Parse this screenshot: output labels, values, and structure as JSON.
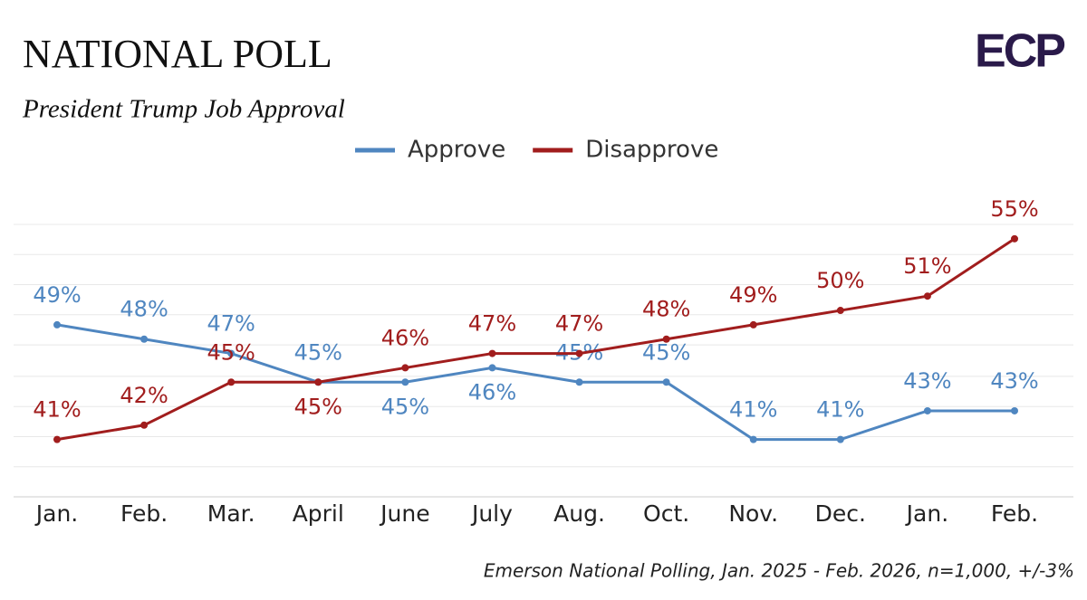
{
  "chart_data": {
    "type": "line",
    "title": "NATIONAL POLL",
    "subtitle": "President Trump Job Approval",
    "logo": "ECP",
    "source": "Emerson National Polling, Jan. 2025 - Feb. 2026, n=1,000, +/-3%",
    "categories": [
      "Jan.",
      "Feb.",
      "Mar.",
      "April",
      "June",
      "July",
      "Aug.",
      "Oct.",
      "Nov.",
      "Dec.",
      "Jan.",
      "Feb."
    ],
    "series": [
      {
        "name": "Approve",
        "color": "#4f86c0",
        "values": [
          49,
          48,
          47,
          45,
          45,
          46,
          45,
          45,
          41,
          41,
          43,
          43
        ],
        "value_labels": [
          "49%",
          "48%",
          "47%",
          "45%",
          "45%",
          "46%",
          "45%",
          "45%",
          "41%",
          "41%",
          "43%",
          "43%"
        ]
      },
      {
        "name": "Disapprove",
        "color": "#a11d1d",
        "values": [
          41,
          42,
          45,
          45,
          46,
          47,
          47,
          48,
          49,
          50,
          51,
          55
        ],
        "value_labels": [
          "41%",
          "42%",
          "45%",
          "45%",
          "46%",
          "47%",
          "47%",
          "48%",
          "49%",
          "50%",
          "51%",
          "55%"
        ]
      }
    ],
    "ylim": [
      37,
      56
    ],
    "yticks": [
      37,
      39.1,
      41.2,
      43.3,
      45.4,
      47.6,
      49.7,
      51.8,
      53.9,
      56
    ],
    "ytick_labels": false,
    "grid": true,
    "legend": "top"
  }
}
